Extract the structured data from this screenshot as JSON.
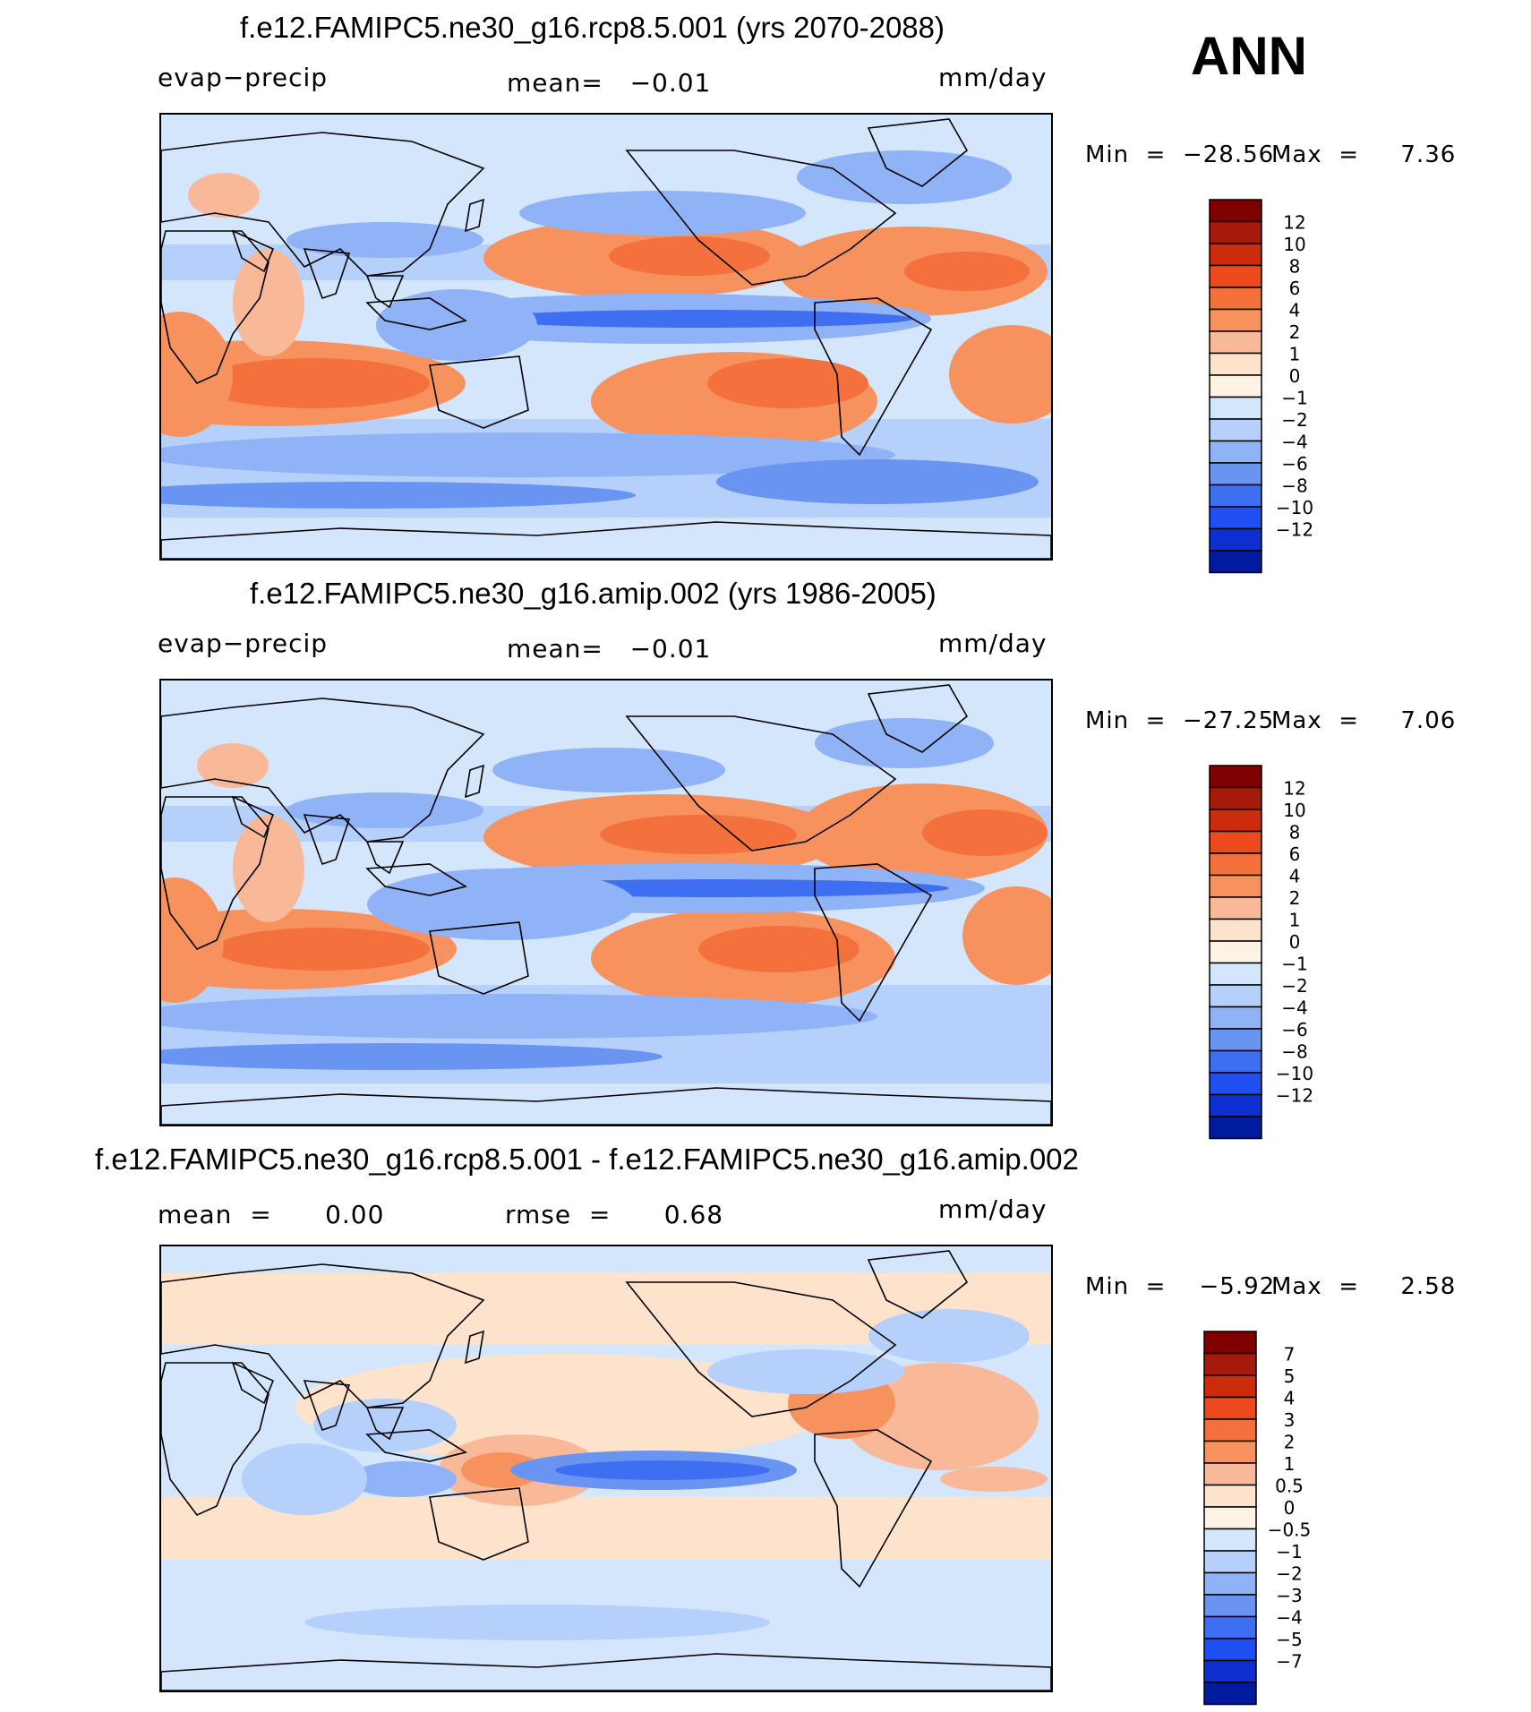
{
  "season": "ANN",
  "colors": {
    "map_background": "#d4e6fb",
    "coastline": "#000000",
    "colorbar_outline": "#000000"
  },
  "panels": [
    {
      "title": "f.e12.FAMIPC5.ne30_g16.rcp8.5.001 (yrs 2070-2088)",
      "left_label": "evap−precip",
      "center_label": "mean=   −0.01",
      "right_label": "mm/day",
      "min_label": "Min  =  −28.56",
      "max_label": "Max  =     7.36",
      "colorbar": {
        "labels": [
          "12",
          "10",
          "8",
          "6",
          "4",
          "2",
          "1",
          "0",
          "−1",
          "−2",
          "−4",
          "−6",
          "−8",
          "−10",
          "−12"
        ],
        "colors": [
          "#7f0000",
          "#a51a0a",
          "#cc2b0c",
          "#ec4a1c",
          "#f4703d",
          "#f7925f",
          "#f9b898",
          "#fde3cc",
          "#fdf2e3",
          "#d4e6fb",
          "#b4d0fb",
          "#8fb3f6",
          "#6a94f2",
          "#3f6ff1",
          "#1f4ff0",
          "#0d2fd0",
          "#001b9d"
        ]
      }
    },
    {
      "title": "f.e12.FAMIPC5.ne30_g16.amip.002 (yrs 1986-2005)",
      "left_label": "evap−precip",
      "center_label": "mean=   −0.01",
      "right_label": "mm/day",
      "min_label": "Min  =  −27.25",
      "max_label": "Max  =     7.06",
      "colorbar": {
        "labels": [
          "12",
          "10",
          "8",
          "6",
          "4",
          "2",
          "1",
          "0",
          "−1",
          "−2",
          "−4",
          "−6",
          "−8",
          "−10",
          "−12"
        ],
        "colors": [
          "#7f0000",
          "#a51a0a",
          "#cc2b0c",
          "#ec4a1c",
          "#f4703d",
          "#f7925f",
          "#f9b898",
          "#fde3cc",
          "#fdf2e3",
          "#d4e6fb",
          "#b4d0fb",
          "#8fb3f6",
          "#6a94f2",
          "#3f6ff1",
          "#1f4ff0",
          "#0d2fd0",
          "#001b9d"
        ]
      }
    },
    {
      "title": "f.e12.FAMIPC5.ne30_g16.rcp8.5.001 - f.e12.FAMIPC5.ne30_g16.amip.002",
      "left_label": "mean  =      0.00",
      "center_label": "rmse  =      0.68",
      "right_label": "mm/day",
      "min_label": "Min  =    −5.92",
      "max_label": "Max  =     2.58",
      "colorbar": {
        "labels": [
          "7",
          "5",
          "4",
          "3",
          "2",
          "1",
          "0.5",
          "0",
          "−0.5",
          "−1",
          "−2",
          "−3",
          "−4",
          "−5",
          "−7"
        ],
        "colors": [
          "#7f0000",
          "#a51a0a",
          "#cc2b0c",
          "#ec4a1c",
          "#f4703d",
          "#f7925f",
          "#f9b898",
          "#fde3cc",
          "#fdf2e3",
          "#d4e6fb",
          "#b4d0fb",
          "#8fb3f6",
          "#6a94f2",
          "#3f6ff1",
          "#1f4ff0",
          "#0d2fd0",
          "#001b9d"
        ]
      }
    }
  ],
  "chart_data": [
    {
      "type": "heatmap",
      "title": "f.e12.FAMIPC5.ne30_g16.rcp8.5.001 (yrs 2070-2088)",
      "variable": "evap−precip",
      "units": "mm/day",
      "mean": -0.01,
      "min": -28.56,
      "max": 7.36,
      "contour_levels": [
        -12,
        -10,
        -8,
        -6,
        -4,
        -2,
        -1,
        0,
        1,
        2,
        4,
        6,
        8,
        10,
        12
      ],
      "projection": "global cylindrical equidistant, centered on Pacific"
    },
    {
      "type": "heatmap",
      "title": "f.e12.FAMIPC5.ne30_g16.amip.002 (yrs 1986-2005)",
      "variable": "evap−precip",
      "units": "mm/day",
      "mean": -0.01,
      "min": -27.25,
      "max": 7.06,
      "contour_levels": [
        -12,
        -10,
        -8,
        -6,
        -4,
        -2,
        -1,
        0,
        1,
        2,
        4,
        6,
        8,
        10,
        12
      ],
      "projection": "global cylindrical equidistant, centered on Pacific"
    },
    {
      "type": "heatmap",
      "title": "f.e12.FAMIPC5.ne30_g16.rcp8.5.001 - f.e12.FAMIPC5.ne30_g16.amip.002",
      "units": "mm/day",
      "mean": 0.0,
      "rmse": 0.68,
      "min": -5.92,
      "max": 2.58,
      "contour_levels": [
        -7,
        -5,
        -4,
        -3,
        -2,
        -1,
        -0.5,
        0,
        0.5,
        1,
        2,
        3,
        4,
        5,
        7
      ],
      "projection": "global cylindrical equidistant, centered on Pacific"
    }
  ]
}
